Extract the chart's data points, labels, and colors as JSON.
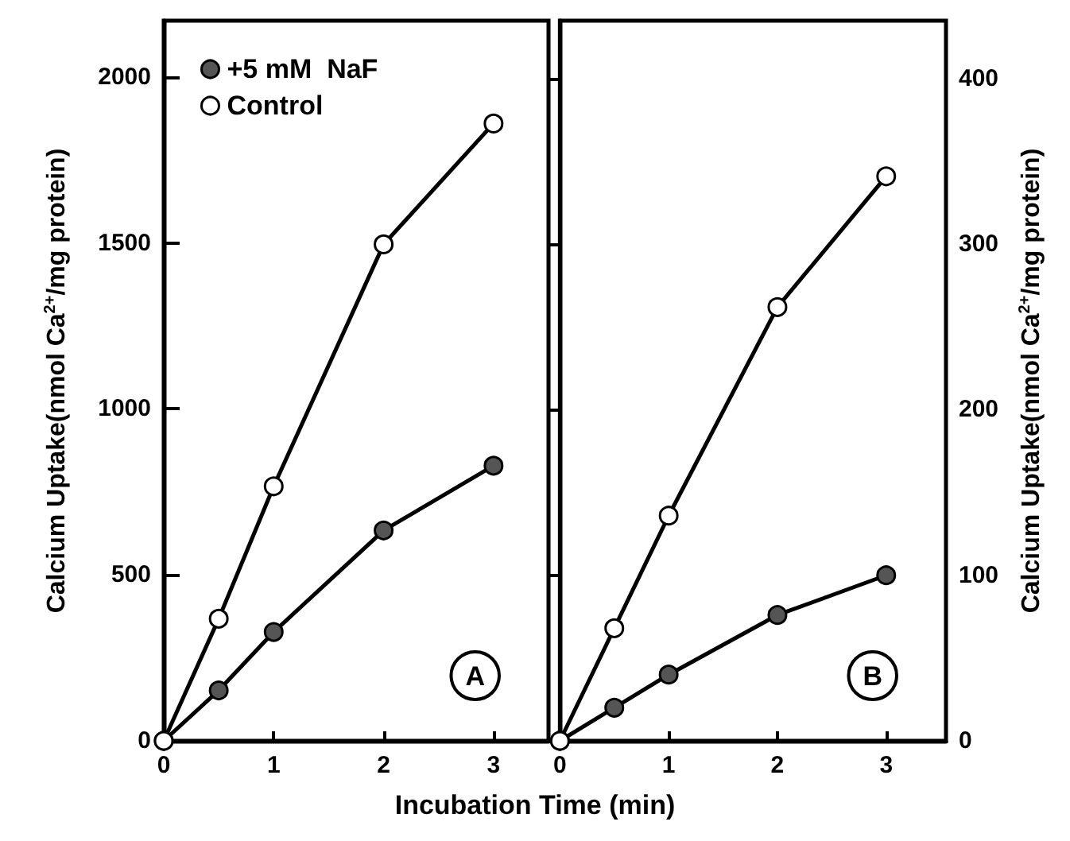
{
  "chart_data": [
    {
      "type": "line",
      "xlabel": "Incubation Time (min)",
      "ylabel": "Calcium Uptake(nmol Ca$^{2+}$/mg protein)",
      "x": [
        0,
        0.5,
        1,
        2,
        3
      ],
      "series": [
        {
          "name": "+5 mM  NaF",
          "color": "#555555",
          "values": [
            0,
            152,
            328,
            634,
            829
          ]
        },
        {
          "name": "Control",
          "color": "#ffffff",
          "values": [
            0,
            368,
            767,
            1496,
            1860
          ]
        }
      ],
      "xlim": [
        0,
        3.5
      ],
      "xticks": [
        0,
        1,
        2,
        3
      ],
      "ylim": [
        0,
        2170
      ],
      "yticks": [
        0,
        500,
        {
          "value": 1000,
          "label": "1000"
        },
        {
          "value": 1500,
          "label": "1500"
        },
        {
          "value": 2000,
          "label": "2000"
        }
      ],
      "marker": "circle",
      "legend": "top left",
      "grid": false,
      "annotations": [
        "A"
      ]
    },
    {
      "type": "line",
      "ylabel": "Calcium Uptake(nmol Ca$^{2+}$/mg protein)",
      "x": [
        0,
        0.5,
        1,
        2,
        3
      ],
      "series": [
        {
          "color": "#555555",
          "values": [
            0,
            20,
            40,
            76,
            100
          ]
        },
        {
          "color": "#ffffff",
          "values": [
            0,
            68,
            136,
            262,
            341
          ]
        }
      ],
      "xlim": [
        0,
        3.55
      ],
      "xticks": [
        0,
        1,
        2,
        3
      ],
      "ylim": [
        0,
        435
      ],
      "yticks": [
        0,
        100,
        200,
        300,
        400
      ],
      "marker": "circle",
      "grid": false,
      "annotations": [
        "B"
      ]
    }
  ]
}
